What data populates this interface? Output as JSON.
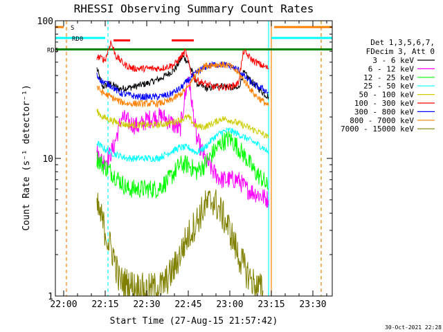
{
  "chart_data": {
    "type": "line",
    "title": "RHESSI Observing Summary Count Rates",
    "xlabel": "Start Time (27-Aug-15 21:57:42)",
    "ylabel": "Count Rate (s⁻¹ detector⁻¹)",
    "y_scale": "log",
    "ylim": [
      1,
      100
    ],
    "xlim": [
      "21:57",
      "23:37"
    ],
    "x_ticks": [
      "22:00",
      "22:15",
      "22:30",
      "22:45",
      "23:00",
      "23:15",
      "23:30"
    ],
    "y_ticks": [
      "1",
      "10",
      "100"
    ],
    "grid": false,
    "legend_position": "right",
    "legend_header": [
      "Det 1,3,5,6,7,",
      "FDecim 3, Att 0"
    ],
    "timestamp": "30-Oct-2021 22:28",
    "series": [
      {
        "name": "3 - 6 keV",
        "color": "#000000",
        "points": [
          [
            "22:12",
            45
          ],
          [
            "22:14",
            33
          ],
          [
            "22:17",
            35
          ],
          [
            "22:20",
            32
          ],
          [
            "22:25",
            33
          ],
          [
            "22:30",
            35
          ],
          [
            "22:35",
            38
          ],
          [
            "22:40",
            44
          ],
          [
            "22:43",
            55
          ],
          [
            "22:45",
            50
          ],
          [
            "22:48",
            35
          ],
          [
            "22:52",
            32
          ],
          [
            "22:56",
            34
          ],
          [
            "23:00",
            33
          ],
          [
            "23:03",
            32
          ],
          [
            "23:05",
            42
          ],
          [
            "23:08",
            36
          ],
          [
            "23:12",
            30
          ],
          [
            "23:14",
            28
          ]
        ]
      },
      {
        "name": "6 - 12 keV",
        "color": "#ff00ff",
        "points": [
          [
            "22:12",
            11
          ],
          [
            "22:14",
            9.5
          ],
          [
            "22:16",
            10
          ],
          [
            "22:18",
            12
          ],
          [
            "22:21",
            20
          ],
          [
            "22:24",
            18
          ],
          [
            "22:27",
            17
          ],
          [
            "22:30",
            19
          ],
          [
            "22:33",
            20
          ],
          [
            "22:36",
            20
          ],
          [
            "22:39",
            18
          ],
          [
            "22:42",
            16
          ],
          [
            "22:45",
            40
          ],
          [
            "22:48",
            14
          ],
          [
            "22:51",
            10
          ],
          [
            "22:54",
            8
          ],
          [
            "22:57",
            7
          ],
          [
            "23:00",
            7
          ],
          [
            "23:03",
            7
          ],
          [
            "23:06",
            6
          ],
          [
            "23:10",
            5.5
          ],
          [
            "23:14",
            5
          ]
        ]
      },
      {
        "name": "12 - 25 keV",
        "color": "#00ff00",
        "points": [
          [
            "22:12",
            10
          ],
          [
            "22:14",
            9
          ],
          [
            "22:17",
            8
          ],
          [
            "22:20",
            7
          ],
          [
            "22:23",
            6
          ],
          [
            "22:27",
            6
          ],
          [
            "22:30",
            6
          ],
          [
            "22:34",
            6
          ],
          [
            "22:38",
            7
          ],
          [
            "22:42",
            9
          ],
          [
            "22:45",
            9
          ],
          [
            "22:48",
            8
          ],
          [
            "22:51",
            9
          ],
          [
            "22:54",
            11
          ],
          [
            "22:57",
            13
          ],
          [
            "23:00",
            14
          ],
          [
            "23:03",
            12
          ],
          [
            "23:06",
            10
          ],
          [
            "23:09",
            8
          ],
          [
            "23:12",
            7
          ],
          [
            "23:14",
            6
          ]
        ]
      },
      {
        "name": "25 - 50 keV",
        "color": "#00ffff",
        "points": [
          [
            "22:12",
            13
          ],
          [
            "22:14",
            12
          ],
          [
            "22:17",
            11
          ],
          [
            "22:20",
            10.5
          ],
          [
            "22:23",
            10
          ],
          [
            "22:27",
            10
          ],
          [
            "22:30",
            10
          ],
          [
            "22:34",
            10
          ],
          [
            "22:38",
            11
          ],
          [
            "22:42",
            12
          ],
          [
            "22:45",
            12
          ],
          [
            "22:48",
            11
          ],
          [
            "22:51",
            12
          ],
          [
            "22:54",
            14
          ],
          [
            "22:57",
            15.5
          ],
          [
            "23:00",
            16
          ],
          [
            "23:03",
            15
          ],
          [
            "23:06",
            14
          ],
          [
            "23:09",
            13
          ],
          [
            "23:12",
            12
          ],
          [
            "23:14",
            11
          ]
        ]
      },
      {
        "name": "50 - 100 keV",
        "color": "#cccc00",
        "points": [
          [
            "22:12",
            22
          ],
          [
            "22:14",
            20
          ],
          [
            "22:17",
            19
          ],
          [
            "22:20",
            18
          ],
          [
            "22:23",
            17.5
          ],
          [
            "22:27",
            17.5
          ],
          [
            "22:30",
            17.5
          ],
          [
            "22:34",
            17.5
          ],
          [
            "22:38",
            18
          ],
          [
            "22:42",
            19
          ],
          [
            "22:45",
            20
          ],
          [
            "22:48",
            17
          ],
          [
            "22:51",
            17
          ],
          [
            "22:54",
            18
          ],
          [
            "22:57",
            19.5
          ],
          [
            "23:00",
            19
          ],
          [
            "23:03",
            18
          ],
          [
            "23:06",
            17
          ],
          [
            "23:09",
            16
          ],
          [
            "23:12",
            15
          ],
          [
            "23:14",
            14
          ]
        ]
      },
      {
        "name": "100 - 300 keV",
        "color": "#ff0000",
        "points": [
          [
            "22:12",
            55
          ],
          [
            "22:15",
            52
          ],
          [
            "22:17",
            70
          ],
          [
            "22:19",
            55
          ],
          [
            "22:22",
            48
          ],
          [
            "22:25",
            45
          ],
          [
            "22:30",
            45
          ],
          [
            "22:35",
            45
          ],
          [
            "22:40",
            48
          ],
          [
            "22:44",
            60
          ],
          [
            "22:46",
            42
          ],
          [
            "22:48",
            37
          ],
          [
            "22:51",
            35
          ],
          [
            "22:54",
            33
          ],
          [
            "22:57",
            33
          ],
          [
            "23:00",
            33
          ],
          [
            "23:03",
            35
          ],
          [
            "23:05",
            60
          ],
          [
            "23:08",
            52
          ],
          [
            "23:11",
            48
          ],
          [
            "23:14",
            45
          ]
        ]
      },
      {
        "name": "300 - 800 keV",
        "color": "#0000ff",
        "points": [
          [
            "22:12",
            40
          ],
          [
            "22:14",
            36
          ],
          [
            "22:17",
            34
          ],
          [
            "22:20",
            30
          ],
          [
            "22:23",
            29
          ],
          [
            "22:27",
            28
          ],
          [
            "22:30",
            28
          ],
          [
            "22:34",
            28
          ],
          [
            "22:38",
            29
          ],
          [
            "22:42",
            32
          ],
          [
            "22:45",
            37
          ],
          [
            "22:48",
            42
          ],
          [
            "22:51",
            46
          ],
          [
            "22:54",
            48
          ],
          [
            "22:57",
            48
          ],
          [
            "23:00",
            47
          ],
          [
            "23:03",
            44
          ],
          [
            "23:06",
            38
          ],
          [
            "23:09",
            34
          ],
          [
            "23:12",
            32
          ],
          [
            "23:14",
            30
          ]
        ]
      },
      {
        "name": "800 - 7000 keV",
        "color": "#ff8000",
        "points": [
          [
            "22:12",
            33
          ],
          [
            "22:14",
            30
          ],
          [
            "22:17",
            28
          ],
          [
            "22:20",
            26
          ],
          [
            "22:23",
            25
          ],
          [
            "22:27",
            25
          ],
          [
            "22:30",
            25
          ],
          [
            "22:34",
            25
          ],
          [
            "22:38",
            26
          ],
          [
            "22:42",
            29
          ],
          [
            "22:45",
            33
          ],
          [
            "22:48",
            42
          ],
          [
            "22:51",
            47
          ],
          [
            "22:54",
            48
          ],
          [
            "22:57",
            48
          ],
          [
            "23:00",
            47
          ],
          [
            "23:03",
            42
          ],
          [
            "23:06",
            35
          ],
          [
            "23:09",
            29
          ],
          [
            "23:12",
            26
          ],
          [
            "23:14",
            24
          ]
        ]
      },
      {
        "name": "7000 - 15000 keV",
        "color": "#808000",
        "points": [
          [
            "22:12",
            4.5
          ],
          [
            "22:14",
            3.5
          ],
          [
            "22:16",
            2.5
          ],
          [
            "22:18",
            2
          ],
          [
            "22:20",
            1.3
          ],
          [
            "22:24",
            1.2
          ],
          [
            "22:30",
            1.1
          ],
          [
            "22:36",
            1.2
          ],
          [
            "22:40",
            1.6
          ],
          [
            "22:44",
            2.5
          ],
          [
            "22:48",
            3.5
          ],
          [
            "22:51",
            4.5
          ],
          [
            "22:54",
            5
          ],
          [
            "22:57",
            4
          ],
          [
            "23:00",
            3
          ],
          [
            "23:03",
            2
          ],
          [
            "23:06",
            1.5
          ],
          [
            "23:09",
            1.2
          ],
          [
            "23:12",
            1.1
          ]
        ]
      }
    ],
    "flag_bars": [
      {
        "name": "S",
        "color": "#ff8000",
        "y": 90,
        "segments": [
          [
            "21:57",
            "22:00"
          ],
          [
            "23:16",
            "23:37"
          ]
        ]
      },
      {
        "name": "RD0",
        "color": "#00ffff",
        "y": 75,
        "segments": [
          [
            "21:57",
            "22:15"
          ],
          [
            "23:15",
            "23:37"
          ]
        ]
      },
      {
        "name": "RD6",
        "color": "#008000",
        "y": 62,
        "segments": [
          [
            "21:57",
            "23:37"
          ]
        ]
      },
      {
        "name": "",
        "color": "#ff0000",
        "y": 72,
        "segments": [
          [
            "22:18",
            "22:24"
          ],
          [
            "22:39",
            "22:47"
          ]
        ]
      }
    ],
    "vlines": [
      {
        "t": "22:01",
        "color": "#ff8000",
        "dash": true
      },
      {
        "t": "22:16",
        "color": "#00ffff",
        "dash": true
      },
      {
        "t": "23:14",
        "color": "#00ffff",
        "dash": false
      },
      {
        "t": "23:15",
        "color": "#ff8000",
        "dash": false
      },
      {
        "t": "23:33",
        "color": "#00ffff",
        "dash": true
      },
      {
        "t": "23:33",
        "color": "#ff8000",
        "dash": true
      }
    ]
  }
}
